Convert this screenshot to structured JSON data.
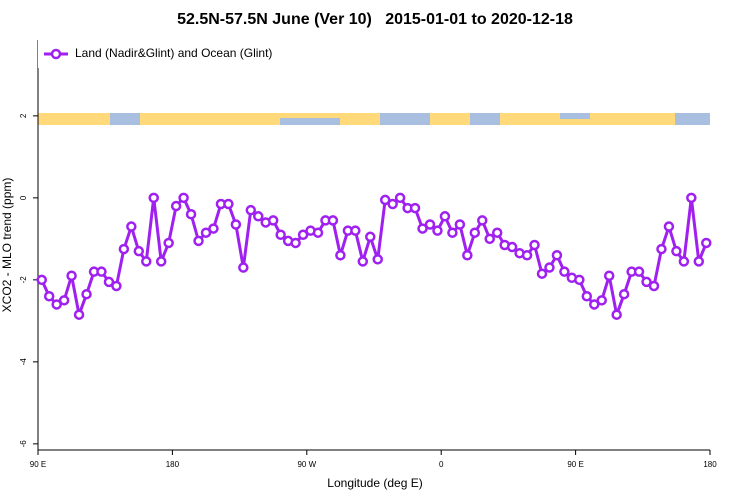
{
  "chart_data": {
    "type": "line",
    "title": "52.5N-57.5N June (Ver 10)   2015-01-01 to 2020-12-18",
    "xlabel": "Longitude (deg E)",
    "ylabel": "XCO2 - MLO trend (ppm)",
    "x": [
      92.5,
      97.5,
      102.5,
      107.5,
      112.5,
      117.5,
      122.5,
      127.5,
      132.5,
      137.5,
      142.5,
      147.5,
      152.5,
      157.5,
      162.5,
      167.5,
      172.5,
      177.5,
      182.5,
      187.5,
      192.5,
      197.5,
      202.5,
      207.5,
      212.5,
      217.5,
      222.5,
      227.5,
      232.5,
      237.5,
      242.5,
      247.5,
      252.5,
      257.5,
      262.5,
      267.5,
      272.5,
      277.5,
      282.5,
      287.5,
      292.5,
      297.5,
      302.5,
      307.5,
      312.5,
      317.5,
      322.5,
      327.5,
      332.5,
      337.5,
      342.5,
      347.5,
      352.5,
      357.5,
      362.5,
      367.5,
      372.5,
      377.5,
      382.5,
      387.5,
      392.5,
      397.5,
      402.5,
      407.5,
      412.5,
      417.5,
      422.5,
      427.5,
      432.5,
      437.5,
      442.5,
      447.5,
      452.5,
      457.5,
      462.5,
      467.5,
      472.5,
      477.5,
      482.5,
      487.5,
      492.5,
      497.5,
      502.5,
      507.5,
      512.5,
      517.5,
      522.5,
      527.5,
      532.5,
      537.5
    ],
    "series": [
      {
        "name": "Land (Nadir&Glint) and Ocean (Glint)",
        "color": "#a020f0",
        "values": [
          -2.0,
          -2.4,
          -2.6,
          -2.5,
          -1.9,
          -2.85,
          -2.35,
          -1.8,
          -1.8,
          -2.05,
          -2.15,
          -1.25,
          -0.7,
          -1.3,
          -1.55,
          0,
          -1.55,
          -1.1,
          -0.2,
          0,
          -0.4,
          -1.05,
          -0.85,
          -0.75,
          -0.15,
          -0.15,
          -0.65,
          -1.7,
          -0.3,
          -0.45,
          -0.6,
          -0.55,
          -0.9,
          -1.05,
          -1.1,
          -0.9,
          -0.8,
          -0.85,
          -0.55,
          -0.55,
          -1.4,
          -0.8,
          -0.8,
          -1.55,
          -0.95,
          -1.5,
          -0.05,
          -0.15,
          0,
          -0.25,
          -0.25,
          -0.75,
          -0.65,
          -0.8,
          -0.45,
          -0.85,
          -0.65,
          -1.4,
          -0.85,
          -0.55,
          -1.0,
          -0.85,
          -1.15,
          -1.2,
          -1.35,
          -1.4,
          -1.15,
          -1.85,
          -1.7,
          -1.4,
          -1.8,
          -1.95,
          -2.0,
          -2.4,
          -2.6,
          -2.5,
          -1.9,
          -2.85,
          -2.35,
          -1.8,
          -1.8,
          -2.05,
          -2.15,
          -1.25,
          -0.7,
          -1.3,
          -1.55,
          0,
          -1.55,
          -1.1
        ]
      }
    ],
    "xlim": [
      90,
      540
    ],
    "xticks": [
      {
        "value": 90,
        "label": "90 E"
      },
      180,
      {
        "value": 270,
        "label": "90 W"
      },
      {
        "value": 360,
        "label": "0"
      },
      {
        "value": 450,
        "label": "90 E"
      },
      {
        "value": 540,
        "label": "180"
      }
    ],
    "ylim": [
      -6.15,
      3.85
    ],
    "yticks": [
      2,
      0,
      -2,
      -4,
      -6
    ],
    "legend": "top-left"
  }
}
